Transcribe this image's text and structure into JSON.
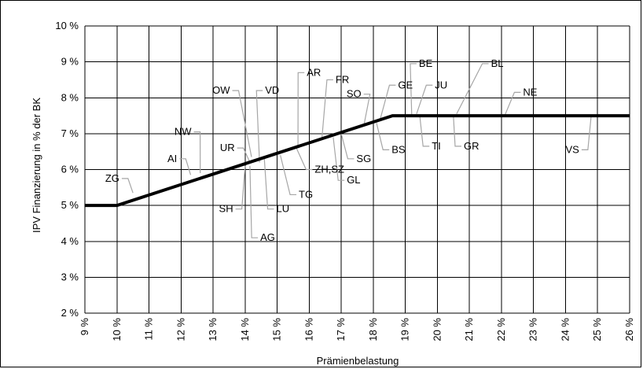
{
  "chart_data": {
    "type": "line",
    "xlabel": "Prämienbelastung",
    "ylabel": "IPV Finanzierung in % der BK",
    "xlim": [
      9,
      26
    ],
    "ylim": [
      2,
      10
    ],
    "x_ticks": [
      "9 %",
      "10 %",
      "11 %",
      "12 %",
      "13 %",
      "14 %",
      "15 %",
      "16 %",
      "17 %",
      "18 %",
      "19 %",
      "20 %",
      "21 %",
      "22 %",
      "23 %",
      "24 %",
      "25 %",
      "26 %"
    ],
    "y_ticks": [
      "2 %",
      "3 %",
      "4 %",
      "5 %",
      "6 %",
      "7 %",
      "8 %",
      "9 %",
      "10 %"
    ],
    "grid": true,
    "series": [
      {
        "x": [
          9,
          10,
          18.6,
          26
        ],
        "y": [
          5,
          5,
          7.5,
          7.5
        ]
      }
    ],
    "annotations": [
      {
        "text": "ZG",
        "x": 10.5,
        "y": 5.35,
        "label_x": 10.15,
        "label_y": 5.75
      },
      {
        "text": "AI",
        "x": 12.3,
        "y": 5.85,
        "label_x": 11.95,
        "label_y": 6.3
      },
      {
        "text": "NW",
        "x": 12.6,
        "y": 5.9,
        "label_x": 12.4,
        "label_y": 7.05
      },
      {
        "text": "OW",
        "x": 14.2,
        "y": 6.35,
        "label_x": 13.6,
        "label_y": 8.2
      },
      {
        "text": "UR",
        "x": 14.15,
        "y": 6.2,
        "label_x": 13.75,
        "label_y": 6.6
      },
      {
        "text": "VD",
        "x": 14.45,
        "y": 6.2,
        "label_x": 14.55,
        "label_y": 8.2
      },
      {
        "text": "SH",
        "x": 14.0,
        "y": 6.1,
        "label_x": 13.7,
        "label_y": 4.9
      },
      {
        "text": "AG",
        "x": 14.15,
        "y": 6.1,
        "label_x": 14.4,
        "label_y": 4.1
      },
      {
        "text": "LU",
        "x": 14.6,
        "y": 6.3,
        "label_x": 14.9,
        "label_y": 4.9
      },
      {
        "text": "AR",
        "x": 15.65,
        "y": 6.6,
        "label_x": 15.85,
        "label_y": 8.7
      },
      {
        "text": "ZH,SZ",
        "x": 15.6,
        "y": 6.6,
        "label_x": 16.1,
        "label_y": 6.0
      },
      {
        "text": "TG",
        "x": 15.1,
        "y": 6.4,
        "label_x": 15.6,
        "label_y": 5.3
      },
      {
        "text": "FR",
        "x": 16.4,
        "y": 6.9,
        "label_x": 16.75,
        "label_y": 8.5
      },
      {
        "text": "GL",
        "x": 16.75,
        "y": 6.9,
        "label_x": 17.1,
        "label_y": 5.7
      },
      {
        "text": "SG",
        "x": 17.0,
        "y": 7.0,
        "label_x": 17.4,
        "label_y": 6.3
      },
      {
        "text": "SO",
        "x": 17.7,
        "y": 7.2,
        "label_x": 17.7,
        "label_y": 8.1
      },
      {
        "text": "BS",
        "x": 18.1,
        "y": 7.3,
        "label_x": 18.5,
        "label_y": 6.55
      },
      {
        "text": "GE",
        "x": 18.2,
        "y": 7.35,
        "label_x": 18.7,
        "label_y": 8.35
      },
      {
        "text": "BE",
        "x": 19.2,
        "y": 7.5,
        "label_x": 19.35,
        "label_y": 8.95
      },
      {
        "text": "JU",
        "x": 19.35,
        "y": 7.55,
        "label_x": 19.85,
        "label_y": 8.35
      },
      {
        "text": "TI",
        "x": 19.45,
        "y": 7.5,
        "label_x": 19.75,
        "label_y": 6.65
      },
      {
        "text": "BL",
        "x": 20.6,
        "y": 7.55,
        "label_x": 21.6,
        "label_y": 8.95
      },
      {
        "text": "GR",
        "x": 20.5,
        "y": 7.5,
        "label_x": 20.75,
        "label_y": 6.65
      },
      {
        "text": "NE",
        "x": 22.1,
        "y": 7.5,
        "label_x": 22.6,
        "label_y": 8.15
      },
      {
        "text": "VS",
        "x": 24.8,
        "y": 7.5,
        "label_x": 24.5,
        "label_y": 6.55
      }
    ]
  },
  "colors": {
    "curve": "#000000",
    "grid": "#000000",
    "leader": "#a6a6a6",
    "background": "#ffffff"
  }
}
